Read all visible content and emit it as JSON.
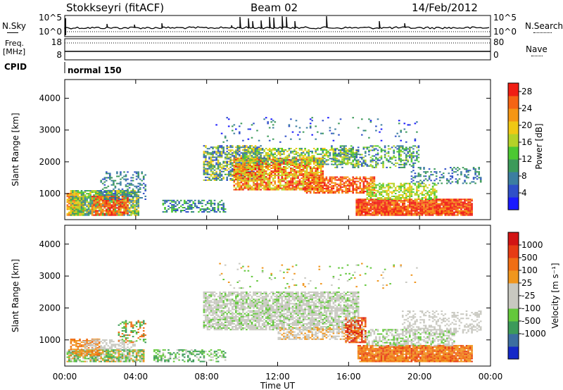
{
  "header": {
    "station": "Stokkseyri (fitACF)",
    "beam": "Beam 02",
    "date": "14/Feb/2012"
  },
  "top_panels": {
    "nsky_label": "N.Sky",
    "nsearch_label": "N.Search",
    "noise_ticks": [
      "10^5",
      "10^0"
    ],
    "freq_label_line1": "Freq.",
    "freq_label_line2": "[MHz]",
    "freq_ticks": [
      "18",
      "8"
    ],
    "nave_label": "Nave",
    "nave_ticks": [
      "80",
      "0"
    ],
    "cpid_label": "CPID",
    "cpid_mode": "normal 150"
  },
  "chart_data": [
    {
      "type": "heatmap",
      "name": "power",
      "ylabel": "Slant Range [km]",
      "xlabel": "",
      "x_ticks": [
        "00:00",
        "04:00",
        "08:00",
        "12:00",
        "16:00",
        "20:00",
        "00:00"
      ],
      "y_ticks": [
        1000,
        2000,
        3000,
        4000
      ],
      "ylim": [
        180,
        4590
      ],
      "xlim_hours": [
        0,
        24
      ],
      "colorbar": {
        "label": "Power [dB]",
        "ticks": [
          4,
          8,
          12,
          16,
          20,
          24,
          28
        ],
        "range": [
          0,
          30
        ],
        "colors": [
          "#1a1aff",
          "#2f4fc8",
          "#3c7ea0",
          "#3c9a5a",
          "#4cc832",
          "#b4d228",
          "#f0c814",
          "#f59614",
          "#f56414",
          "#f01e14"
        ]
      }
    },
    {
      "type": "heatmap",
      "name": "velocity",
      "ylabel": "Slant Range [km]",
      "xlabel": "Time UT",
      "x_ticks": [
        "00:00",
        "04:00",
        "08:00",
        "12:00",
        "16:00",
        "20:00",
        "00:00"
      ],
      "y_ticks": [
        1000,
        2000,
        3000,
        4000
      ],
      "ylim": [
        180,
        4590
      ],
      "xlim_hours": [
        0,
        24
      ],
      "colorbar": {
        "label": "Velocity [m s⁻¹]",
        "ticks": [
          "1000",
          "500",
          "100",
          "25",
          "-25",
          "-100",
          "-500",
          "-1000"
        ],
        "colors": [
          "#1428c8",
          "#3c6ea0",
          "#3c9a5a",
          "#64c83c",
          "#c8c8c0",
          "#c8c8c0",
          "#f0961e",
          "#f06e14",
          "#e63c14",
          "#d21414"
        ]
      }
    }
  ]
}
